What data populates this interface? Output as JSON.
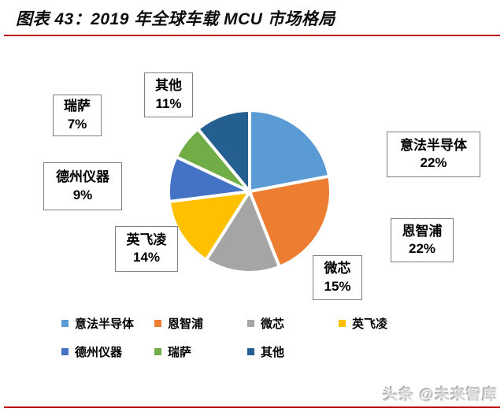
{
  "header": {
    "title": "图表 43：2019 年全球车载 MCU 市场格局",
    "accent_color": "#c00000"
  },
  "chart_data": {
    "type": "pie",
    "title": "2019 年全球车载 MCU 市场格局",
    "start_angle_deg": 0,
    "direction": "clockwise",
    "legend_position": "bottom",
    "gap_color": "#ffffff",
    "categories": [
      "意法半导体",
      "恩智浦",
      "微芯",
      "英飞凌",
      "德州仪器",
      "瑞萨",
      "其他"
    ],
    "values": [
      22,
      22,
      15,
      14,
      9,
      7,
      11
    ],
    "slices": [
      {
        "name": "意法半导体",
        "value": 22,
        "value_label": "22%",
        "color": "#5b9bd5"
      },
      {
        "name": "恩智浦",
        "value": 22,
        "value_label": "22%",
        "color": "#ed7d31"
      },
      {
        "name": "微芯",
        "value": 15,
        "value_label": "15%",
        "color": "#a5a5a5"
      },
      {
        "name": "英飞凌",
        "value": 14,
        "value_label": "14%",
        "color": "#ffc000"
      },
      {
        "name": "德州仪器",
        "value": 9,
        "value_label": "9%",
        "color": "#4472c4"
      },
      {
        "name": "瑞萨",
        "value": 7,
        "value_label": "7%",
        "color": "#70ad47"
      },
      {
        "name": "其他",
        "value": 11,
        "value_label": "11%",
        "color": "#255e91"
      }
    ]
  },
  "watermark": {
    "text": "头条 @未来智库"
  }
}
